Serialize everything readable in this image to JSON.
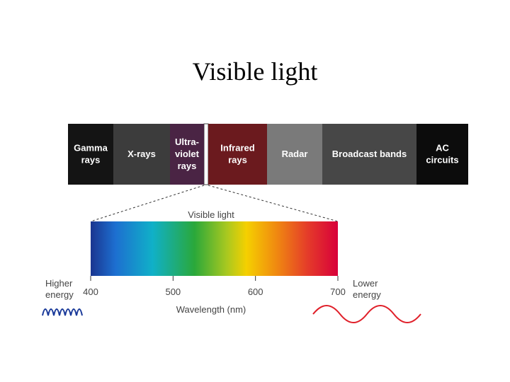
{
  "title": "Visible light",
  "bands": [
    {
      "lines": [
        "Gamma",
        "rays"
      ]
    },
    {
      "lines": [
        "X-rays"
      ]
    },
    {
      "lines": [
        "Ultra-",
        "violet",
        "rays"
      ]
    },
    {
      "lines": [
        "Infrared",
        "rays"
      ]
    },
    {
      "lines": [
        "Radar"
      ]
    },
    {
      "lines": [
        "Broadcast  bands"
      ]
    },
    {
      "lines": [
        "AC",
        "circuits"
      ]
    }
  ],
  "spectrum": {
    "label": "Visible light",
    "ticks": [
      400,
      500,
      600,
      700
    ],
    "axis_label": "Wavelength (nm)"
  },
  "left_note": {
    "lines": [
      "Higher",
      "energy"
    ]
  },
  "right_note": {
    "lines": [
      "Lower",
      "energy"
    ]
  }
}
